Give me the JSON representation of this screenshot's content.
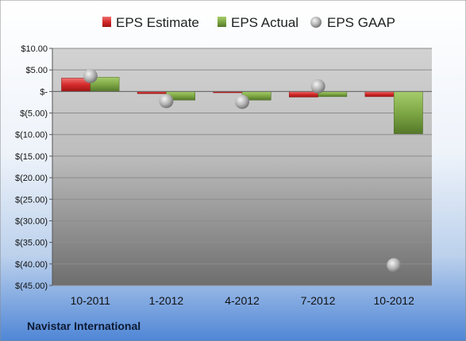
{
  "chart_data": {
    "type": "bar",
    "company": "Navistar International",
    "categories": [
      "10-2011",
      "1-2012",
      "4-2012",
      "7-2012",
      "10-2012"
    ],
    "y_ticks": [
      "$10.00",
      "$5.00",
      "$-",
      "$(5.00)",
      "$(10.00)",
      "$(15.00)",
      "$(20.00)",
      "$(25.00)",
      "$(30.00)",
      "$(35.00)",
      "$(40.00)",
      "$(45.00)"
    ],
    "ylim": [
      -45,
      10
    ],
    "grid": true,
    "legend_position": "top",
    "series": [
      {
        "name": "EPS Estimate",
        "kind": "bar",
        "color": "#d42a2a",
        "values": [
          3.1,
          -0.5,
          -0.3,
          -1.3,
          -1.2
        ]
      },
      {
        "name": "EPS Actual",
        "kind": "bar",
        "color": "#6e9a35",
        "values": [
          3.3,
          -2.0,
          -2.0,
          -1.2,
          -9.8
        ]
      },
      {
        "name": "EPS GAAP",
        "kind": "marker",
        "color": "#a9a9a9",
        "values": [
          3.6,
          -2.2,
          -2.4,
          1.2,
          -40.3
        ]
      }
    ]
  }
}
